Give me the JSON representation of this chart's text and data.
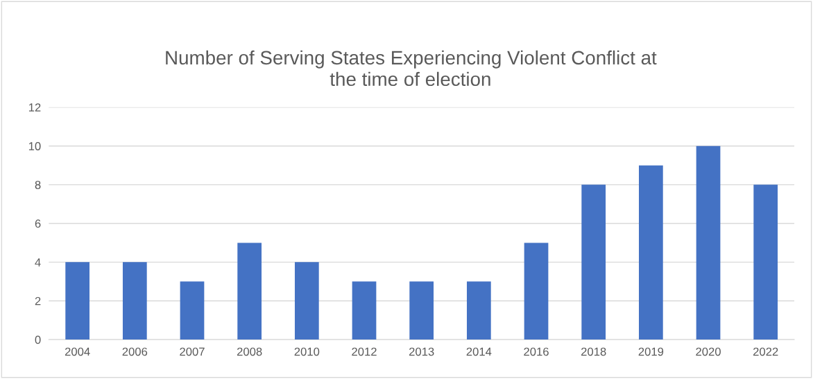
{
  "chart_data": {
    "type": "bar",
    "title": "Number of Serving States Experiencing Violent Conflict at\nthe time of election",
    "categories": [
      "2004",
      "2006",
      "2007",
      "2008",
      "2010",
      "2012",
      "2013",
      "2014",
      "2016",
      "2018",
      "2019",
      "2020",
      "2022"
    ],
    "values": [
      4,
      4,
      3,
      5,
      4,
      3,
      3,
      3,
      5,
      8,
      9,
      10,
      8
    ],
    "color": "#4472c4",
    "ylim": [
      0,
      12
    ],
    "yticks": [
      0,
      2,
      4,
      6,
      8,
      10,
      12
    ],
    "grid": "y"
  }
}
